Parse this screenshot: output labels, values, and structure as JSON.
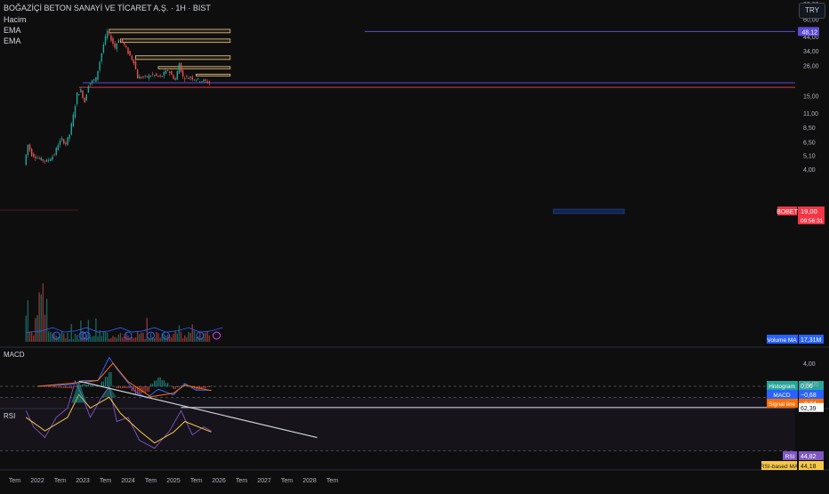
{
  "header": {
    "symbol_title": "BOĞAZİÇİ BETON SANAYİ VE TİCARET A.Ş. · 1H · BIST",
    "indicators": [
      "Hacim",
      "EMA",
      "EMA"
    ],
    "currency": "TRY"
  },
  "price_axis": {
    "ticks": [
      "240,0",
      "180,0",
      "143,4",
      "110,0",
      "80,00",
      "60,00",
      "48,12",
      "44,00",
      "34,00",
      "26,00",
      "19,00",
      "15,00",
      "11,00",
      "8,50",
      "6,50",
      "5,10",
      "4,00"
    ],
    "scale": "log"
  },
  "time_axis": {
    "ticks": [
      "Tem",
      "2022",
      "Tem",
      "2023",
      "Tem",
      "2024",
      "Tem",
      "2025",
      "Tem",
      "2026",
      "Tem",
      "2027",
      "Tem",
      "2028",
      "Tem"
    ]
  },
  "labels": {
    "bobet_symbol": "BOBET",
    "last_price": "19,00",
    "countdown": "09:56:31",
    "level_143": "143,4",
    "level_48": "48,12",
    "volume_ma_label": "Volume MA",
    "volume_ma_value": "17,31M"
  },
  "macd_panel": {
    "title": "MACD",
    "axis_tick": "4,00",
    "legend": [
      {
        "name": "Histogram",
        "value": "0,06",
        "color": "#26a69a"
      },
      {
        "name": "MACD",
        "value": "−0,68",
        "color": "#2962ff"
      },
      {
        "name": "Signal line",
        "value": "−0,74",
        "color": "#ff6d00"
      }
    ]
  },
  "rsi_panel": {
    "title": "RSI",
    "axis_tick": "80,00",
    "level_box": "62,39",
    "legend": [
      {
        "name": "RSI",
        "value": "44,82",
        "color": "#7e57c2"
      },
      {
        "name": "RSI-based MA",
        "value": "44,18",
        "color": "#f7c844"
      }
    ]
  },
  "colors": {
    "up": "#26a69a",
    "down": "#ef5350",
    "zone": "#c9a76b",
    "purple_line": "#5b4bd6",
    "red_line": "#d13b48",
    "volume_ma": "#2962ff"
  },
  "chart_data": {
    "type": "candlestick",
    "title": "BOĞAZİÇİ BETON SANAYİ VE TİCARET A.Ş. · 1H · BIST",
    "y_scale": "log",
    "ylim": [
      3.6,
      300
    ],
    "x_range": [
      "2021-05",
      "2028-09"
    ],
    "price_path": [
      {
        "date": "2021-10",
        "price": 4.3
      },
      {
        "date": "2021-11",
        "price": 6.2
      },
      {
        "date": "2021-12",
        "price": 5.2
      },
      {
        "date": "2022-02",
        "price": 4.8
      },
      {
        "date": "2022-04",
        "price": 4.6
      },
      {
        "date": "2022-06",
        "price": 5.2
      },
      {
        "date": "2022-07",
        "price": 6.3
      },
      {
        "date": "2022-08",
        "price": 6.8
      },
      {
        "date": "2022-09",
        "price": 6.3
      },
      {
        "date": "2022-10",
        "price": 7.5
      },
      {
        "date": "2022-11",
        "price": 10.5
      },
      {
        "date": "2022-12",
        "price": 15.5
      },
      {
        "date": "2023-01",
        "price": 16.5
      },
      {
        "date": "2023-02",
        "price": 13.5
      },
      {
        "date": "2023-03",
        "price": 18.5
      },
      {
        "date": "2023-04",
        "price": 19.5
      },
      {
        "date": "2023-05",
        "price": 20.5
      },
      {
        "date": "2023-06",
        "price": 28
      },
      {
        "date": "2023-07",
        "price": 38
      },
      {
        "date": "2023-08",
        "price": 48
      },
      {
        "date": "2023-09",
        "price": 42
      },
      {
        "date": "2023-10",
        "price": 36
      },
      {
        "date": "2023-11",
        "price": 42
      },
      {
        "date": "2023-12",
        "price": 40
      },
      {
        "date": "2024-01",
        "price": 35
      },
      {
        "date": "2024-02",
        "price": 31
      },
      {
        "date": "2024-03",
        "price": 28
      },
      {
        "date": "2024-04",
        "price": 21
      },
      {
        "date": "2024-06",
        "price": 21
      },
      {
        "date": "2024-08",
        "price": 22
      },
      {
        "date": "2024-10",
        "price": 21
      },
      {
        "date": "2024-12",
        "price": 24
      },
      {
        "date": "2025-02",
        "price": 20
      },
      {
        "date": "2025-03",
        "price": 27
      },
      {
        "date": "2025-04",
        "price": 21
      },
      {
        "date": "2025-06",
        "price": 21
      },
      {
        "date": "2025-08",
        "price": 20
      },
      {
        "date": "2025-10",
        "price": 19.5
      },
      {
        "date": "2025-11",
        "price": 19
      }
    ],
    "resistance_zones": [
      {
        "from": "2023-08",
        "to": "2026-04",
        "low": 47,
        "high": 50
      },
      {
        "from": "2023-11",
        "to": "2026-04",
        "low": 39.5,
        "high": 42
      },
      {
        "from": "2024-03",
        "to": "2026-04",
        "low": 29,
        "high": 31
      },
      {
        "from": "2024-09",
        "to": "2026-04",
        "low": 24.5,
        "high": 25.5
      },
      {
        "from": "2025-07",
        "to": "2026-04",
        "low": 21.5,
        "high": 22.2
      }
    ],
    "horizontal_lines": [
      {
        "value": 143.4,
        "from": "2023-06",
        "color": "#5b4bd6"
      },
      {
        "value": 48.12,
        "from": "2026-04",
        "color": "#5b4bd6"
      },
      {
        "value": 19.0,
        "from": "2023-01",
        "color": "#5b4bd6"
      },
      {
        "value": 17.5,
        "from": "2022-12",
        "color": "#d13b48"
      }
    ],
    "macd": {
      "macd": [
        {
          "date": "2022-01",
          "v": 0
        },
        {
          "date": "2022-10",
          "v": 0.3
        },
        {
          "date": "2023-01",
          "v": 1.0
        },
        {
          "date": "2023-05",
          "v": 1.0
        },
        {
          "date": "2023-08",
          "v": 5.0
        },
        {
          "date": "2023-10",
          "v": 3.0
        },
        {
          "date": "2024-03",
          "v": -1.0
        },
        {
          "date": "2024-06",
          "v": -2.0
        },
        {
          "date": "2024-09",
          "v": -0.5
        },
        {
          "date": "2025-01",
          "v": -1.5
        },
        {
          "date": "2025-04",
          "v": 0.5
        },
        {
          "date": "2025-07",
          "v": -0.7
        },
        {
          "date": "2025-11",
          "v": -0.68
        }
      ],
      "signal": [
        {
          "date": "2022-01",
          "v": 0
        },
        {
          "date": "2023-01",
          "v": 0.7
        },
        {
          "date": "2023-05",
          "v": 1.0
        },
        {
          "date": "2023-09",
          "v": 4.0
        },
        {
          "date": "2024-01",
          "v": 0.8
        },
        {
          "date": "2024-07",
          "v": -1.8
        },
        {
          "date": "2025-01",
          "v": -1.2
        },
        {
          "date": "2025-04",
          "v": 0.2
        },
        {
          "date": "2025-11",
          "v": -0.74
        }
      ],
      "histogram_last": 0.06
    },
    "rsi": {
      "rsi": [
        {
          "date": "2021-10",
          "v": 60
        },
        {
          "date": "2021-12",
          "v": 48
        },
        {
          "date": "2022-03",
          "v": 40
        },
        {
          "date": "2022-06",
          "v": 55
        },
        {
          "date": "2022-09",
          "v": 62
        },
        {
          "date": "2022-11",
          "v": 82
        },
        {
          "date": "2023-01",
          "v": 70
        },
        {
          "date": "2023-03",
          "v": 55
        },
        {
          "date": "2023-06",
          "v": 70
        },
        {
          "date": "2023-08",
          "v": 78
        },
        {
          "date": "2023-10",
          "v": 52
        },
        {
          "date": "2024-01",
          "v": 55
        },
        {
          "date": "2024-04",
          "v": 38
        },
        {
          "date": "2024-08",
          "v": 32
        },
        {
          "date": "2024-12",
          "v": 45
        },
        {
          "date": "2025-03",
          "v": 60
        },
        {
          "date": "2025-06",
          "v": 42
        },
        {
          "date": "2025-09",
          "v": 48
        },
        {
          "date": "2025-11",
          "v": 44.82
        }
      ],
      "rsi_ma": [
        {
          "date": "2021-10",
          "v": 55
        },
        {
          "date": "2022-03",
          "v": 45
        },
        {
          "date": "2022-09",
          "v": 55
        },
        {
          "date": "2022-12",
          "v": 72
        },
        {
          "date": "2023-03",
          "v": 62
        },
        {
          "date": "2023-08",
          "v": 70
        },
        {
          "date": "2023-11",
          "v": 58
        },
        {
          "date": "2024-04",
          "v": 45
        },
        {
          "date": "2024-08",
          "v": 36
        },
        {
          "date": "2025-01",
          "v": 44
        },
        {
          "date": "2025-04",
          "v": 52
        },
        {
          "date": "2025-11",
          "v": 44.18
        }
      ],
      "levels": [
        70,
        62.39,
        30
      ],
      "trendline": [
        {
          "date": "2022-12",
          "v": 82
        },
        {
          "date": "2028-03",
          "v": 40
        }
      ]
    }
  }
}
